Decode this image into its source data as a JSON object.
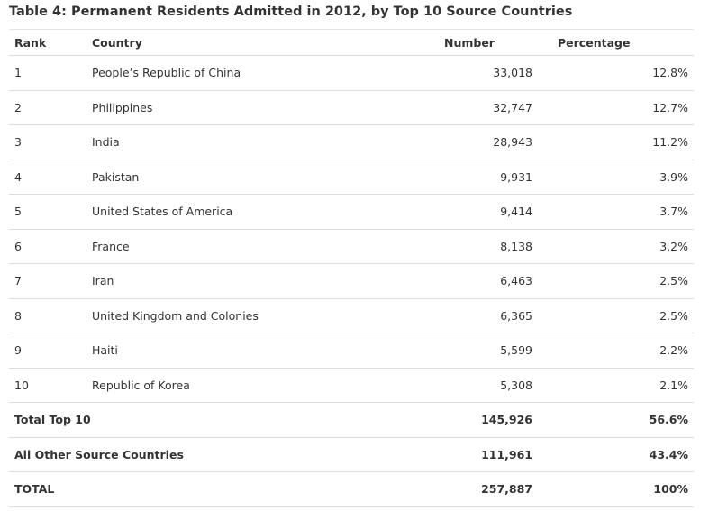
{
  "caption": "Table 4: Permanent Residents Admitted in 2012, by Top 10 Source Countries",
  "headers": {
    "rank": "Rank",
    "country": "Country",
    "number": "Number",
    "percentage": "Percentage"
  },
  "rows": [
    {
      "rank": "1",
      "country": "People’s Republic of China",
      "number": "33,018",
      "percentage": "12.8%"
    },
    {
      "rank": "2",
      "country": "Philippines",
      "number": "32,747",
      "percentage": "12.7%"
    },
    {
      "rank": "3",
      "country": "India",
      "number": "28,943",
      "percentage": "11.2%"
    },
    {
      "rank": "4",
      "country": "Pakistan",
      "number": "9,931",
      "percentage": "3.9%"
    },
    {
      "rank": "5",
      "country": "United States of America",
      "number": "9,414",
      "percentage": "3.7%"
    },
    {
      "rank": "6",
      "country": "France",
      "number": "8,138",
      "percentage": "3.2%"
    },
    {
      "rank": "7",
      "country": "Iran",
      "number": "6,463",
      "percentage": "2.5%"
    },
    {
      "rank": "8",
      "country": "United Kingdom and Colonies",
      "number": "6,365",
      "percentage": "2.5%"
    },
    {
      "rank": "9",
      "country": "Haiti",
      "number": "5,599",
      "percentage": "2.2%"
    },
    {
      "rank": "10",
      "country": "Republic of Korea",
      "number": "5,308",
      "percentage": "2.1%"
    }
  ],
  "totals": [
    {
      "label": "Total Top 10",
      "number": "145,926",
      "percentage": "56.6%"
    },
    {
      "label": "All Other Source Countries",
      "number": "111,961",
      "percentage": "43.4%"
    },
    {
      "label": "TOTAL",
      "number": "257,887",
      "percentage": "100%"
    }
  ]
}
